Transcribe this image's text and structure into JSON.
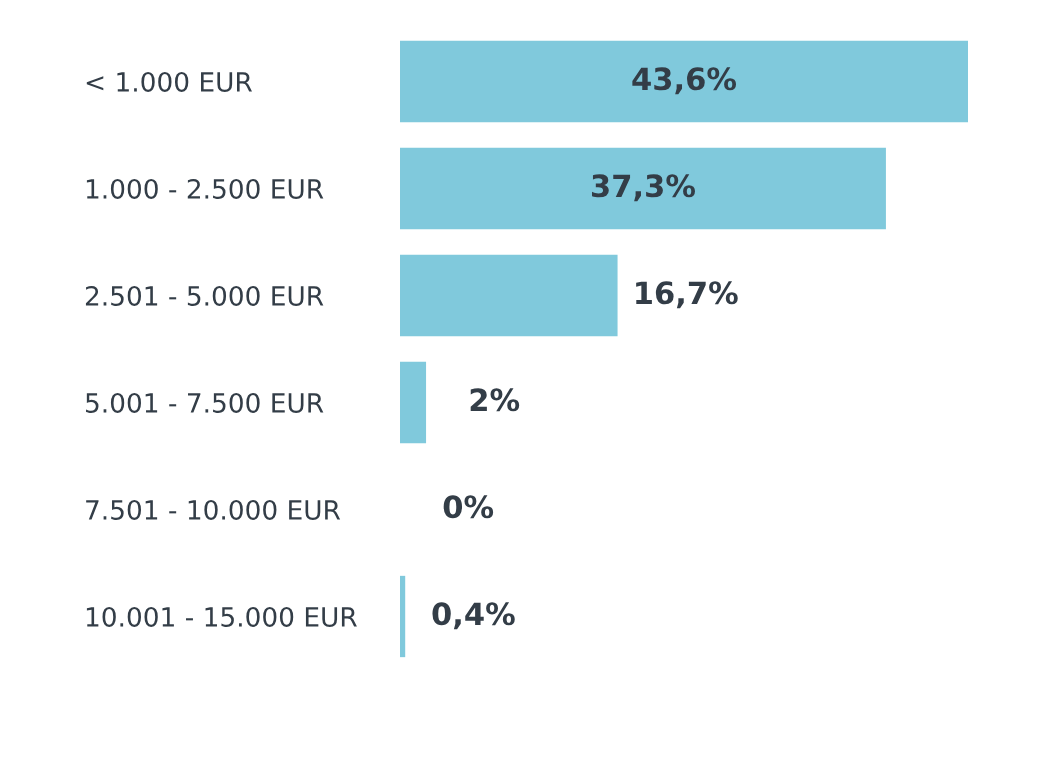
{
  "chart_data": {
    "type": "bar",
    "orientation": "horizontal",
    "categories": [
      "< 1.000 EUR",
      "1.000 - 2.500 EUR",
      "2.501 - 5.000 EUR",
      "5.001 - 7.500 EUR",
      "7.501 - 10.000 EUR",
      "10.001 - 15.000 EUR"
    ],
    "values": [
      43.6,
      37.3,
      16.7,
      2,
      0,
      0.4
    ],
    "value_labels": [
      "43,6%",
      "37,3%",
      "16,7%",
      "2%",
      "0%",
      "0,4%"
    ],
    "color": "#80c9dc",
    "grid": false,
    "legend": false
  }
}
